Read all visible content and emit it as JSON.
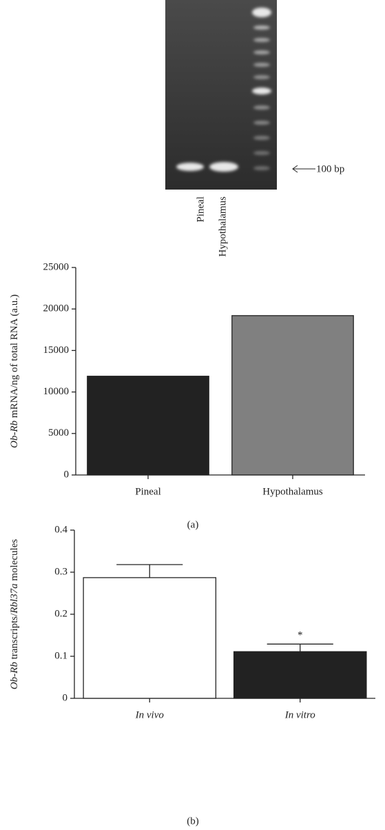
{
  "gel": {
    "lanes": [
      "Pineal",
      "Hypothalamus"
    ],
    "marker": "100 bp"
  },
  "chart_data": [
    {
      "type": "bar",
      "panel": "(a)",
      "ylabel": [
        {
          "text": "Ob-Rb",
          "italic": true
        },
        {
          "text": " mRNA/ng of total RNA (a.u.)",
          "italic": false
        }
      ],
      "categories": [
        "Pineal",
        "Hypothalamus"
      ],
      "category_italic": false,
      "values": [
        11900,
        19200
      ],
      "colors": [
        "#222222",
        "#808080"
      ],
      "ylim": [
        0,
        25000
      ],
      "yticks": [
        0,
        5000,
        10000,
        15000,
        20000,
        25000
      ]
    },
    {
      "type": "bar",
      "panel": "(b)",
      "ylabel": [
        {
          "text": "Ob-Rb",
          "italic": true
        },
        {
          "text": " transcripts/",
          "italic": false
        },
        {
          "text": "Rbl37a",
          "italic": true
        },
        {
          "text": " molecules",
          "italic": false
        }
      ],
      "categories": [
        "In vivo",
        "In vitro"
      ],
      "category_italic": true,
      "values": [
        0.287,
        0.111
      ],
      "errors": [
        0.031,
        0.018
      ],
      "colors": [
        "#ffffff",
        "#222222"
      ],
      "annotations": [
        null,
        "*"
      ],
      "ylim": [
        0,
        0.4
      ],
      "yticks": [
        0,
        0.1,
        0.2,
        0.3,
        0.4
      ]
    }
  ]
}
